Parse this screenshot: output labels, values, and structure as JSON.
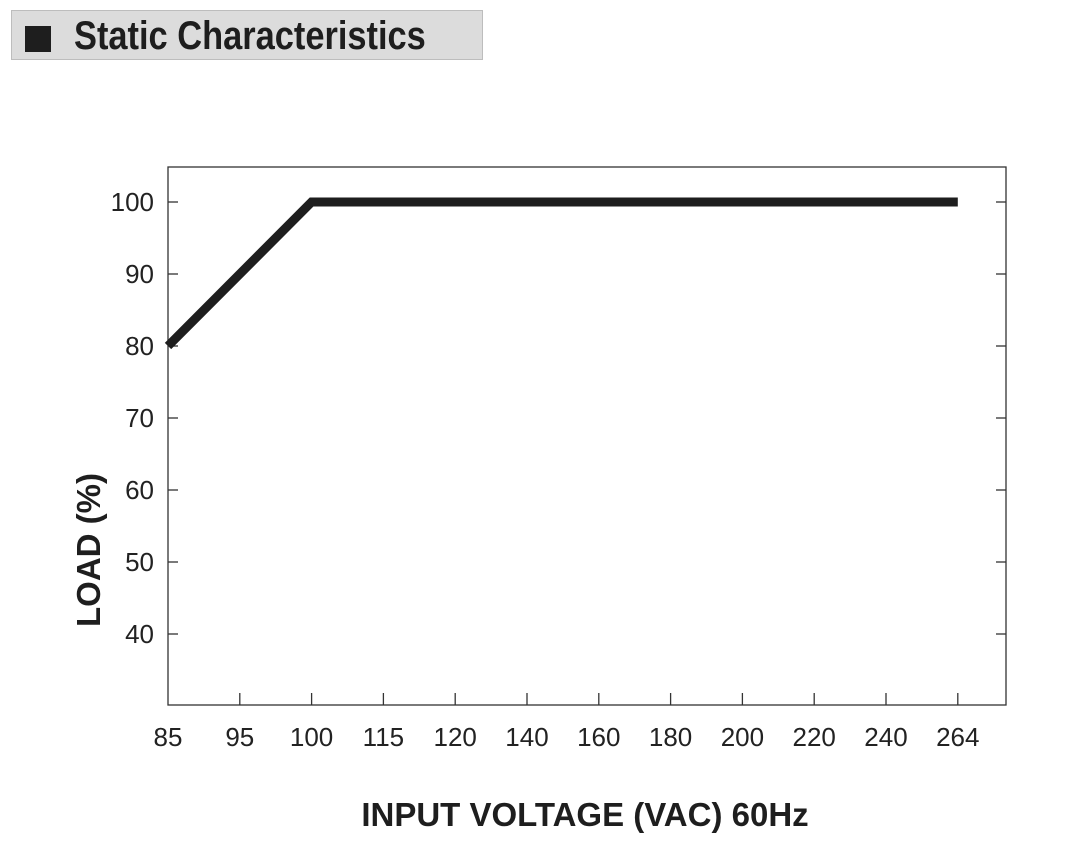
{
  "header": {
    "title": "Static Characteristics",
    "bullet_icon": "filled-square-icon"
  },
  "chart_data": {
    "type": "line",
    "xlabel": "INPUT VOLTAGE (VAC) 60Hz",
    "ylabel": "LOAD (%)",
    "x_ticks": [
      "85",
      "95",
      "100",
      "115",
      "120",
      "140",
      "160",
      "180",
      "200",
      "220",
      "240",
      "264"
    ],
    "y_ticks": [
      40,
      50,
      60,
      70,
      80,
      90,
      100
    ],
    "ylim": [
      30,
      105
    ],
    "x_scale": "categorical (equally spaced tick labels)",
    "grid": false,
    "series": [
      {
        "x": [
          "85",
          "100",
          "264"
        ],
        "y": [
          80,
          100,
          100
        ]
      }
    ],
    "colors": {
      "line": "#1e1e1e",
      "axis": "#333333"
    }
  }
}
